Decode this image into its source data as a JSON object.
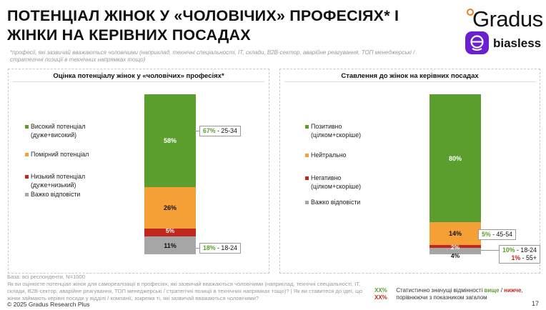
{
  "header": {
    "title": "ПОТЕНЦІАЛ ЖІНОК У «ЧОЛОВІЧИХ» ПРОФЕСІЯХ* І ЖІНКИ НА КЕРІВНИХ ПОСАДАХ",
    "subtitle": "*професії, які зазвичай вважаються чоловічими (наприклад, технічні спеціальності, ІТ, склади, B2B-сектор, аварійне реагування, ТОП менеджерські / стратегічні позиції в технічних напрямках тощо)"
  },
  "logos": {
    "gradus": "Gradus",
    "biasless": "biasless"
  },
  "chart_data": [
    {
      "type": "bar",
      "stacked": true,
      "title": "Оцінка потенціалу жінок у «чоловічих» професіях*",
      "segments": [
        {
          "name": "Важко відповісти",
          "value": 11,
          "label": "11%",
          "color": "#a6a6a6"
        },
        {
          "name": "Низький потенціал\n(дуже+низький)",
          "value": 5,
          "label": "5%",
          "color": "#c0271d"
        },
        {
          "name": "Помірний потенціал",
          "value": 26,
          "label": "26%",
          "color": "#f4a037"
        },
        {
          "name": "Високий потенціал\n(дуже+високий)",
          "value": 58,
          "label": "58%",
          "color": "#5c9e2e"
        }
      ],
      "callouts": [
        {
          "pct": "67%",
          "group": " - 25-34",
          "color": "#5c9e2e"
        },
        {
          "pct": "18%",
          "group": " - 18-24",
          "color": "#5c9e2e"
        }
      ]
    },
    {
      "type": "bar",
      "stacked": true,
      "title": "Ставлення до жінок на керівних посадах",
      "segments": [
        {
          "name": "Важко відповісти",
          "value": 4,
          "label": "4%",
          "color": "#a6a6a6"
        },
        {
          "name": "Негативно\n(цілком+скоріше)",
          "value": 2,
          "label": "2%",
          "color": "#c0271d"
        },
        {
          "name": "Нейтрально",
          "value": 14,
          "label": "14%",
          "color": "#f4a037"
        },
        {
          "name": "Позитивно\n(цілком+скоріше)",
          "value": 80,
          "label": "80%",
          "color": "#5c9e2e"
        }
      ],
      "callouts": [
        {
          "pct": "5%",
          "group": " - 45-54",
          "color": "#5c9e2e"
        },
        {
          "pct": "10%",
          "group": " - 18-24",
          "color": "#5c9e2e",
          "pct2": "1%",
          "group2": " - 55+",
          "color2": "#c0271d"
        }
      ]
    }
  ],
  "footnote": {
    "base": "База: всі респонденти, N=1000",
    "question": "Як ви оцінюєте потенціал жінок для самореалізації в професіях, які зазвичай вважаються чоловічими (наприклад, технічні спеціальності, ІТ, склади, B2B-сектор, аварійне реагування, ТОП менеджерські / стратегічні позиції в технічних напрямках тощо)? | Як ви ставитеся до ідеї, що жінки займають керівні посади у відділі / компанії, зокрема ті, які зазвичай вважаються чоловічими?"
  },
  "significance": {
    "green_sample": "XX%",
    "red_sample": "XX%",
    "text_a": "Статистично значущі відмінності ",
    "higher": "вище",
    "sep": " / ",
    "lower": "нижче",
    "comma": ",",
    "text_b": "порівнюючи з показником загалом"
  },
  "copyright": "© 2025 Gradus Research Plus",
  "page_number": "17"
}
